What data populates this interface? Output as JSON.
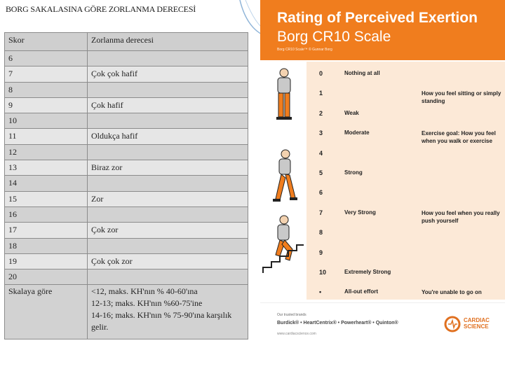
{
  "left": {
    "title": "BORG SAKALASINA GÖRE ZORLANMA DERECESİ",
    "columns": [
      "Skor",
      "Zorlanma derecesi"
    ],
    "rows": [
      [
        "6",
        ""
      ],
      [
        "7",
        "Çok çok hafif"
      ],
      [
        "8",
        ""
      ],
      [
        "9",
        "Çok hafif"
      ],
      [
        "10",
        ""
      ],
      [
        "11",
        "Oldukça hafif"
      ],
      [
        "12",
        ""
      ],
      [
        "13",
        "Biraz zor"
      ],
      [
        "14",
        ""
      ],
      [
        "15",
        "Zor"
      ],
      [
        "16",
        ""
      ],
      [
        "17",
        "Çok zor"
      ],
      [
        "18",
        ""
      ],
      [
        "19",
        "Çok çok zor"
      ],
      [
        "20",
        ""
      ]
    ],
    "note_label": "Skalaya göre",
    "note_lines": [
      "<12, maks. KH'nın % 40-60'ına",
      "12-13; maks. KH'nın %60-75'ine",
      "14-16; maks. KH'nın % 75-90'ına karşılık",
      "gelir."
    ]
  },
  "poster": {
    "title": "Rating of Perceived Exertion",
    "subtitle": "Borg CR10 Scale",
    "caption": "Borg CR10 Scale™ © Gunnar Borg",
    "ratings": [
      {
        "num": "0",
        "label": "Nothing at all",
        "note": ""
      },
      {
        "num": "1",
        "label": "",
        "note": "How you feel sitting or simply standing"
      },
      {
        "num": "2",
        "label": "Weak",
        "note": ""
      },
      {
        "num": "3",
        "label": "Moderate",
        "note": "Exercise goal: How you feel when you walk or exercise"
      },
      {
        "num": "4",
        "label": "",
        "note": ""
      },
      {
        "num": "5",
        "label": "Strong",
        "note": ""
      },
      {
        "num": "6",
        "label": "",
        "note": ""
      },
      {
        "num": "7",
        "label": "Very Strong",
        "note": "How you feel when you really push yourself"
      },
      {
        "num": "8",
        "label": "",
        "note": ""
      },
      {
        "num": "9",
        "label": "",
        "note": ""
      },
      {
        "num": "10",
        "label": "Extremely Strong",
        "note": ""
      },
      {
        "num": "•",
        "label": "All-out effort",
        "note": "You're unable to go on"
      }
    ],
    "footer": {
      "brand_label": "Our trusted brands",
      "brands": "Burdick® • HeartCentrix® • Powerheart® • Quinton®",
      "url": "www.cardiacscience.com",
      "logo_text_1": "CARDIAC",
      "logo_text_2": "SCIENCE"
    },
    "colors": {
      "orange": "#f07d1e",
      "band": "#fce9d7"
    }
  }
}
